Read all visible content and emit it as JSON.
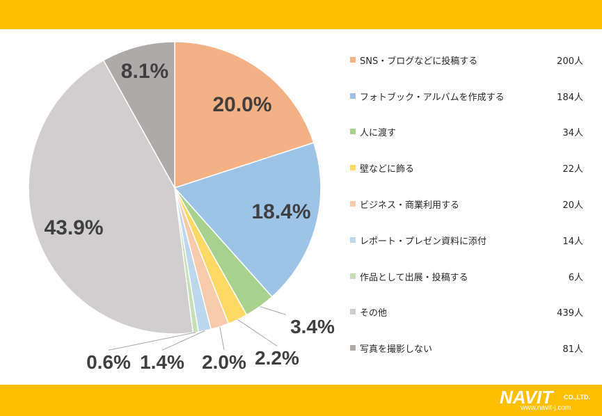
{
  "chart_data": {
    "type": "pie",
    "title": "",
    "series": [
      {
        "label": "SNS・ブログなどに投稿する",
        "count": "200人",
        "percent_label": "20.0%",
        "value": 20.0,
        "color": "#f4b183"
      },
      {
        "label": "フォトブック・アルバムを作成する",
        "count": "184人",
        "percent_label": "18.4%",
        "value": 18.4,
        "color": "#9dc3e6"
      },
      {
        "label": "人に渡す",
        "count": "34人",
        "percent_label": "3.4%",
        "value": 3.4,
        "color": "#a9d18e"
      },
      {
        "label": "壁などに飾る",
        "count": "22人",
        "percent_label": "2.2%",
        "value": 2.2,
        "color": "#ffd966"
      },
      {
        "label": "ビジネス・商業利用する",
        "count": "20人",
        "percent_label": "2.0%",
        "value": 2.0,
        "color": "#f8cbad"
      },
      {
        "label": "レポート・プレゼン資料に添付",
        "count": "14人",
        "percent_label": "1.4%",
        "value": 1.4,
        "color": "#bdd7ee"
      },
      {
        "label": "作品として出展・投稿する",
        "count": "6人",
        "percent_label": "0.6%",
        "value": 0.6,
        "color": "#c5e0b4"
      },
      {
        "label": "その他",
        "count": "439人",
        "percent_label": "43.9%",
        "value": 43.9,
        "color": "#d0cece"
      },
      {
        "label": "写真を撮影しない",
        "count": "81人",
        "percent_label": "8.1%",
        "value": 8.1,
        "color": "#aeaaaa"
      }
    ],
    "start_angle_deg": 0,
    "direction": "clockwise",
    "legend_position": "right"
  },
  "logo": {
    "main": "NAVIT",
    "suffix": "CO.,LTD.",
    "url": "www.navit-j.com"
  },
  "colors": {
    "band": "#ffbe00",
    "leader": "#a6a6a6",
    "label_text": "#3f3f3f"
  }
}
